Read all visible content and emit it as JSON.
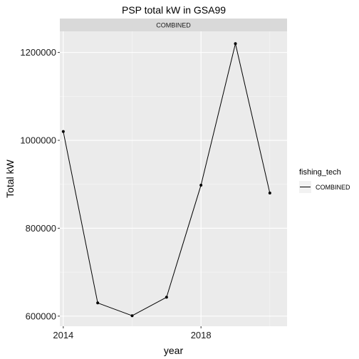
{
  "chart_data": {
    "type": "line",
    "title": "PSP total kW in GSA99",
    "facet_label": "COMBINED",
    "xlabel": "year",
    "ylabel": "Total kW",
    "x_ticks": [
      2014,
      2018
    ],
    "y_ticks": [
      600000,
      800000,
      1000000,
      1200000
    ],
    "xlim": [
      2013.9,
      2020.5
    ],
    "ylim": [
      577000,
      1248000
    ],
    "grid": true,
    "legend": {
      "title": "fishing_tech",
      "position": "right",
      "entries": [
        "COMBINED"
      ]
    },
    "series": [
      {
        "name": "COMBINED",
        "color": "#000000",
        "x": [
          2014,
          2015,
          2016,
          2017,
          2018,
          2019,
          2020
        ],
        "y": [
          1020000,
          630000,
          601000,
          643000,
          898000,
          1220000,
          880000
        ]
      }
    ]
  }
}
